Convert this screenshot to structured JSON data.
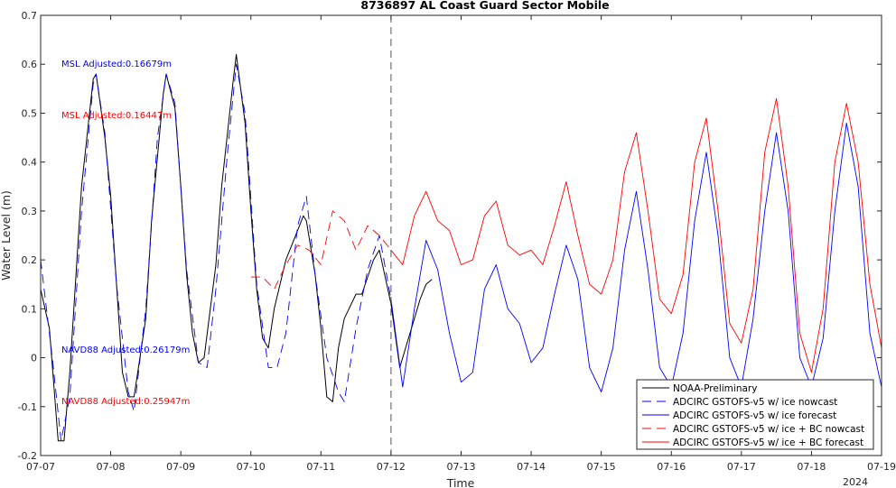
{
  "chart_data": {
    "type": "line",
    "title": "8736897 AL Coast Guard Sector Mobile",
    "xlabel": "Time",
    "ylabel": "Water Level (m)",
    "year_label": "2024",
    "ylim": [
      -0.2,
      0.7
    ],
    "yticks": [
      -0.2,
      -0.1,
      0,
      0.1,
      0.2,
      0.3,
      0.4,
      0.5,
      0.6,
      0.7
    ],
    "ytick_labels": [
      "-0.2",
      "-0.1",
      "0",
      "0.1",
      "0.2",
      "0.3",
      "0.4",
      "0.5",
      "0.6",
      "0.7"
    ],
    "xlim": [
      "07-07",
      "07-19"
    ],
    "xticks": [
      "07-07",
      "07-08",
      "07-09",
      "07-10",
      "07-11",
      "07-12",
      "07-13",
      "07-14",
      "07-15",
      "07-16",
      "07-17",
      "07-18",
      "07-19"
    ],
    "nowcast_divider": "07-12",
    "grid": false,
    "legend_position": "bottom-right",
    "annotations": [
      {
        "text": "MSL Adjusted:0.16679m",
        "color": "#0000ff",
        "date": "07-07",
        "y": 0.595
      },
      {
        "text": "MSL Adjusted:0.16447m",
        "color": "#ff0000",
        "date": "07-07",
        "y": 0.49
      },
      {
        "text": "NAVD88 Adjusted:0.26179m",
        "color": "#0000ff",
        "date": "07-07",
        "y": 0.01
      },
      {
        "text": "NAVD88 Adjusted:0.25947m",
        "color": "#ff0000",
        "date": "07-07",
        "y": -0.095
      }
    ],
    "series": [
      {
        "name": "NOAA-Preliminary",
        "color": "#000000",
        "dash": "solid",
        "x": [
          "07-07 00:00",
          "07-07 03:00",
          "07-07 06:00",
          "07-07 08:00",
          "07-07 10:00",
          "07-07 14:00",
          "07-07 18:00",
          "07-07 19:00",
          "07-07 22:00",
          "07-08 00:00",
          "07-08 02:00",
          "07-08 04:00",
          "07-08 06:00",
          "07-08 08:00",
          "07-08 12:00",
          "07-08 14:00",
          "07-08 18:00",
          "07-08 19:00",
          "07-08 22:00",
          "07-09 00:00",
          "07-09 02:00",
          "07-09 04:00",
          "07-09 06:00",
          "07-09 08:00",
          "07-09 12:00",
          "07-09 14:00",
          "07-09 18:00",
          "07-09 19:00",
          "07-09 22:00",
          "07-10 00:00",
          "07-10 02:00",
          "07-10 04:00",
          "07-10 06:00",
          "07-10 08:00",
          "07-10 12:00",
          "07-10 14:00",
          "07-10 18:00",
          "07-10 19:00",
          "07-10 22:00",
          "07-11 00:00",
          "07-11 02:00",
          "07-11 04:00",
          "07-11 06:00",
          "07-11 08:00",
          "07-11 12:00",
          "07-11 14:00",
          "07-11 18:00",
          "07-11 20:00",
          "07-12 00:00",
          "07-12 03:00",
          "07-12 06:00",
          "07-12 08:00",
          "07-12 10:00",
          "07-12 12:00",
          "07-12 14:00"
        ],
        "y": [
          0.14,
          0.06,
          -0.17,
          -0.17,
          -0.03,
          0.35,
          0.57,
          0.58,
          0.45,
          0.33,
          0.15,
          -0.03,
          -0.08,
          -0.08,
          0.08,
          0.28,
          0.54,
          0.58,
          0.51,
          0.35,
          0.17,
          0.05,
          -0.01,
          0.0,
          0.19,
          0.35,
          0.57,
          0.62,
          0.48,
          0.3,
          0.14,
          0.04,
          0.02,
          0.1,
          0.2,
          0.23,
          0.29,
          0.28,
          0.17,
          0.06,
          -0.08,
          -0.09,
          0.02,
          0.08,
          0.13,
          0.13,
          0.2,
          0.22,
          0.11,
          -0.02,
          0.04,
          0.08,
          0.12,
          0.15,
          0.16
        ]
      },
      {
        "name": "ADCIRC GSTOFS-v5  w/ ice nowcast",
        "color": "#0000ff",
        "dash": "dashed",
        "x": [
          "07-07 00:00",
          "07-07 04:00",
          "07-07 07:00",
          "07-07 10:00",
          "07-07 14:00",
          "07-07 18:00",
          "07-07 19:00",
          "07-07 22:00",
          "07-08 02:00",
          "07-08 06:00",
          "07-08 08:00",
          "07-08 12:00",
          "07-08 16:00",
          "07-08 19:00",
          "07-08 22:00",
          "07-09 02:00",
          "07-09 06:00",
          "07-09 09:00",
          "07-09 12:00",
          "07-09 16:00",
          "07-09 19:00",
          "07-09 22:00",
          "07-10 02:00",
          "07-10 06:00",
          "07-10 09:00",
          "07-10 12:00",
          "07-10 16:00",
          "07-10 19:00",
          "07-10 22:00",
          "07-11 02:00",
          "07-11 06:00",
          "07-11 08:00",
          "07-11 12:00",
          "07-11 16:00",
          "07-11 20:00",
          "07-12 00:00"
        ],
        "y": [
          0.2,
          0.0,
          -0.17,
          -0.08,
          0.3,
          0.56,
          0.58,
          0.46,
          0.15,
          -0.07,
          -0.11,
          0.1,
          0.45,
          0.58,
          0.52,
          0.18,
          -0.01,
          -0.02,
          0.14,
          0.42,
          0.6,
          0.5,
          0.15,
          -0.02,
          -0.02,
          0.05,
          0.27,
          0.33,
          0.17,
          0.0,
          -0.07,
          -0.09,
          0.06,
          0.18,
          0.25,
          0.12
        ]
      },
      {
        "name": "ADCIRC GSTOFS-v5  w/ ice forecast",
        "color": "#0000ff",
        "dash": "solid",
        "x": [
          "07-12 00:00",
          "07-12 04:00",
          "07-12 08:00",
          "07-12 12:00",
          "07-12 16:00",
          "07-12 20:00",
          "07-13 00:00",
          "07-13 04:00",
          "07-13 08:00",
          "07-13 12:00",
          "07-13 16:00",
          "07-13 20:00",
          "07-14 00:00",
          "07-14 04:00",
          "07-14 08:00",
          "07-14 12:00",
          "07-14 16:00",
          "07-14 20:00",
          "07-15 00:00",
          "07-15 04:00",
          "07-15 08:00",
          "07-15 12:00",
          "07-15 16:00",
          "07-15 20:00",
          "07-16 00:00",
          "07-16 04:00",
          "07-16 08:00",
          "07-16 12:00",
          "07-16 16:00",
          "07-16 20:00",
          "07-17 00:00",
          "07-17 04:00",
          "07-17 08:00",
          "07-17 12:00",
          "07-17 16:00",
          "07-17 20:00",
          "07-18 00:00",
          "07-18 04:00",
          "07-18 08:00",
          "07-18 12:00",
          "07-18 16:00",
          "07-18 20:00",
          "07-19 00:00"
        ],
        "y": [
          0.12,
          -0.06,
          0.1,
          0.24,
          0.18,
          0.05,
          -0.05,
          -0.03,
          0.14,
          0.19,
          0.1,
          0.07,
          -0.01,
          0.02,
          0.13,
          0.23,
          0.16,
          -0.02,
          -0.07,
          0.02,
          0.22,
          0.34,
          0.18,
          -0.02,
          -0.06,
          0.05,
          0.28,
          0.42,
          0.25,
          0.0,
          -0.06,
          0.08,
          0.3,
          0.46,
          0.3,
          0.0,
          -0.06,
          0.04,
          0.3,
          0.48,
          0.35,
          0.05,
          -0.06
        ]
      },
      {
        "name": "ADCIRC GSTOFS-v5  w/ ice + BC nowcast",
        "color": "#ff0000",
        "dash": "dashed",
        "x": [
          "07-10 00:00",
          "07-10 04:00",
          "07-10 08:00",
          "07-10 12:00",
          "07-10 16:00",
          "07-10 20:00",
          "07-11 00:00",
          "07-11 04:00",
          "07-11 08:00",
          "07-11 12:00",
          "07-11 16:00",
          "07-11 20:00",
          "07-12 00:00"
        ],
        "y": [
          0.165,
          0.165,
          0.14,
          0.19,
          0.23,
          0.22,
          0.19,
          0.3,
          0.28,
          0.22,
          0.27,
          0.25,
          0.22
        ]
      },
      {
        "name": "ADCIRC GSTOFS-v5  w/ ice + BC forecast",
        "color": "#ff0000",
        "dash": "solid",
        "x": [
          "07-12 00:00",
          "07-12 04:00",
          "07-12 08:00",
          "07-12 12:00",
          "07-12 16:00",
          "07-12 20:00",
          "07-13 00:00",
          "07-13 04:00",
          "07-13 08:00",
          "07-13 12:00",
          "07-13 16:00",
          "07-13 20:00",
          "07-14 00:00",
          "07-14 04:00",
          "07-14 08:00",
          "07-14 12:00",
          "07-14 16:00",
          "07-14 20:00",
          "07-15 00:00",
          "07-15 04:00",
          "07-15 08:00",
          "07-15 12:00",
          "07-15 16:00",
          "07-15 20:00",
          "07-16 00:00",
          "07-16 04:00",
          "07-16 08:00",
          "07-16 12:00",
          "07-16 16:00",
          "07-16 20:00",
          "07-17 00:00",
          "07-17 04:00",
          "07-17 08:00",
          "07-17 12:00",
          "07-17 16:00",
          "07-17 20:00",
          "07-18 00:00",
          "07-18 04:00",
          "07-18 08:00",
          "07-18 12:00",
          "07-18 16:00",
          "07-18 20:00",
          "07-19 00:00"
        ],
        "y": [
          0.22,
          0.19,
          0.29,
          0.34,
          0.28,
          0.26,
          0.19,
          0.2,
          0.29,
          0.32,
          0.23,
          0.21,
          0.22,
          0.19,
          0.27,
          0.36,
          0.25,
          0.15,
          0.13,
          0.2,
          0.38,
          0.46,
          0.3,
          0.12,
          0.09,
          0.17,
          0.4,
          0.49,
          0.3,
          0.07,
          0.03,
          0.14,
          0.42,
          0.53,
          0.35,
          0.05,
          -0.03,
          0.1,
          0.4,
          0.52,
          0.4,
          0.15,
          0.02
        ]
      }
    ]
  }
}
